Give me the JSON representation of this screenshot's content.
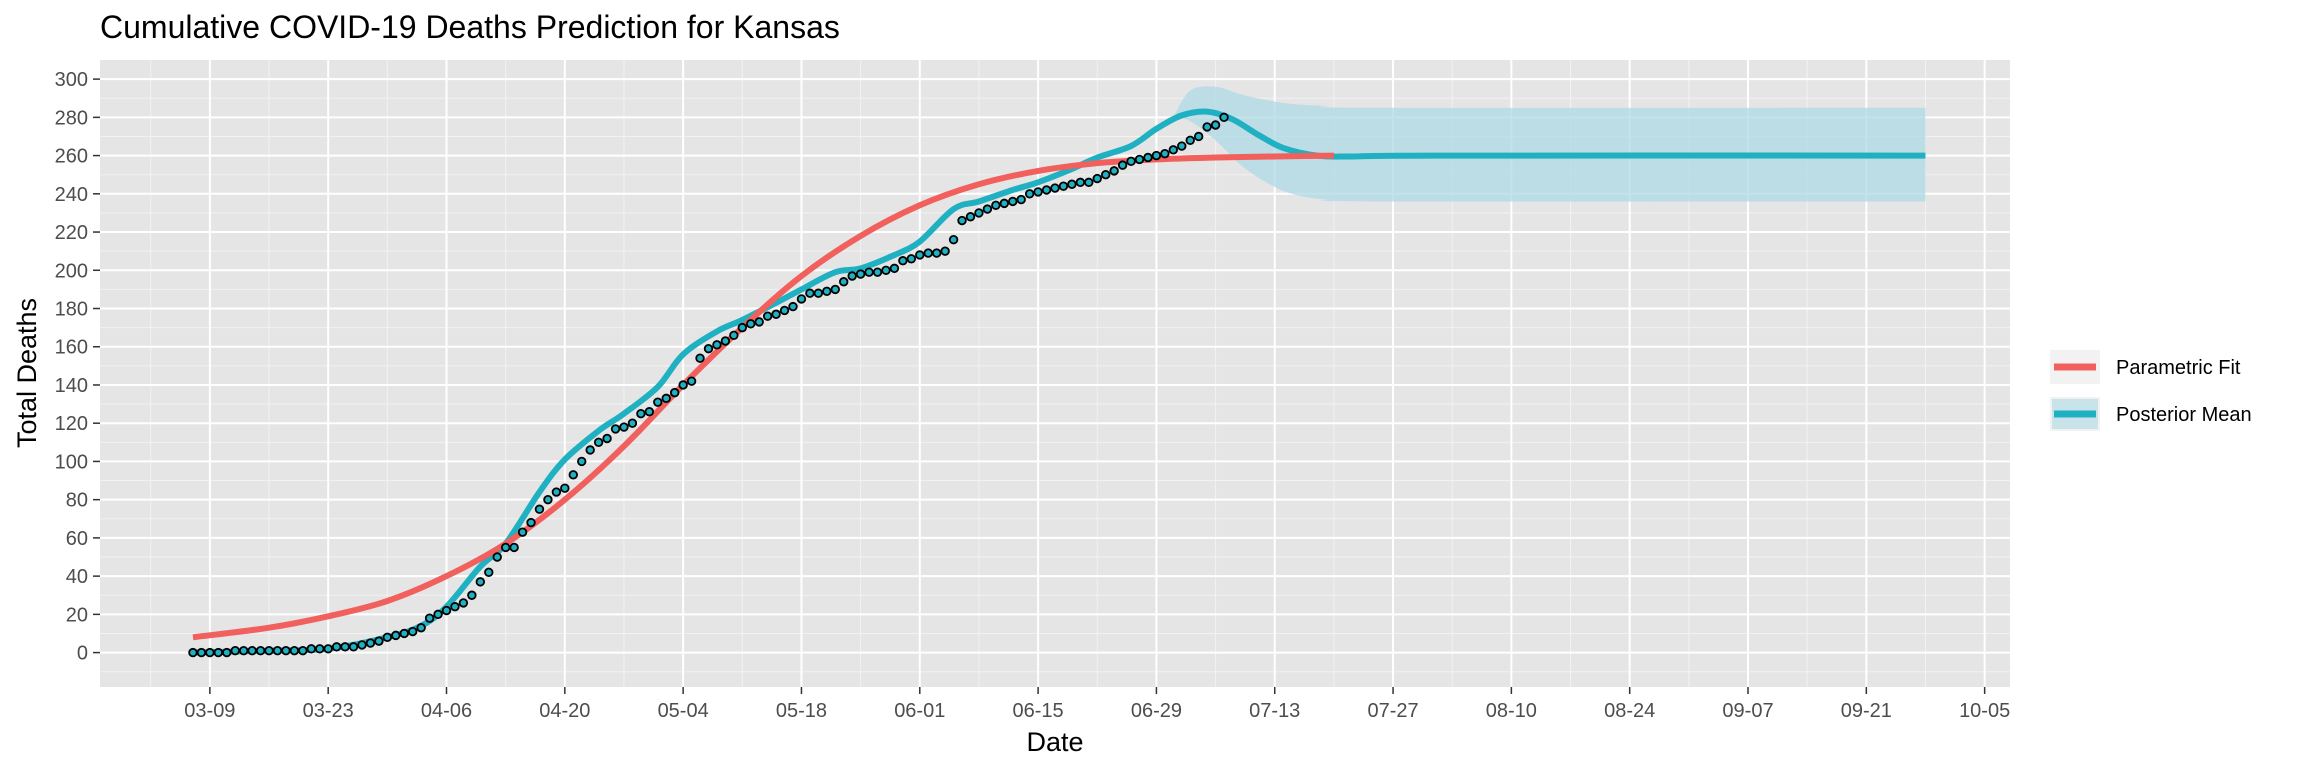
{
  "chart_data": {
    "type": "line",
    "title": "Cumulative COVID-19 Deaths Prediction for Kansas",
    "xlabel": "Date",
    "ylabel": "Total Deaths",
    "x_ticks": [
      "03-09",
      "03-23",
      "04-06",
      "04-20",
      "05-04",
      "05-18",
      "06-01",
      "06-15",
      "06-29",
      "07-13",
      "07-27",
      "08-10",
      "08-24",
      "09-07",
      "09-21",
      "10-05"
    ],
    "x_tick_dates": [
      "2020-03-09",
      "2020-03-23",
      "2020-04-06",
      "2020-04-20",
      "2020-05-04",
      "2020-05-18",
      "2020-06-01",
      "2020-06-15",
      "2020-06-29",
      "2020-07-13",
      "2020-07-27",
      "2020-08-10",
      "2020-08-24",
      "2020-09-07",
      "2020-09-21",
      "2020-10-05"
    ],
    "y_ticks": [
      0,
      20,
      40,
      60,
      80,
      100,
      120,
      140,
      160,
      180,
      200,
      220,
      240,
      260,
      280,
      300
    ],
    "xlim": [
      "2020-02-25",
      "2020-10-08"
    ],
    "ylim": [
      -18,
      310
    ],
    "grid": true,
    "legend_position": "right",
    "colors": {
      "parametric": "#F1605C",
      "posterior": "#1FB1C1",
      "band": "#ADD8E6",
      "panel": "#E5E5E5",
      "grid_major": "#FFFFFF",
      "grid_minor": "#F2F2F2"
    },
    "series": [
      {
        "name": "Parametric Fit",
        "kind": "line",
        "points": [
          [
            "2020-03-07",
            8
          ],
          [
            "2020-03-16",
            13
          ],
          [
            "2020-03-23",
            19
          ],
          [
            "2020-03-30",
            27
          ],
          [
            "2020-04-06",
            40
          ],
          [
            "2020-04-13",
            57
          ],
          [
            "2020-04-20",
            80
          ],
          [
            "2020-04-27",
            108
          ],
          [
            "2020-05-04",
            140
          ],
          [
            "2020-05-11",
            170
          ],
          [
            "2020-05-18",
            197
          ],
          [
            "2020-05-25",
            218
          ],
          [
            "2020-06-01",
            234
          ],
          [
            "2020-06-08",
            245
          ],
          [
            "2020-06-15",
            252
          ],
          [
            "2020-06-22",
            256
          ],
          [
            "2020-06-29",
            258
          ],
          [
            "2020-07-06",
            259
          ],
          [
            "2020-07-13",
            259.5
          ],
          [
            "2020-07-20",
            260
          ]
        ]
      },
      {
        "name": "Posterior Mean",
        "kind": "line",
        "points": [
          [
            "2020-03-07",
            0
          ],
          [
            "2020-03-16",
            1
          ],
          [
            "2020-03-23",
            2
          ],
          [
            "2020-03-30",
            8
          ],
          [
            "2020-04-03",
            14
          ],
          [
            "2020-04-06",
            24
          ],
          [
            "2020-04-10",
            45
          ],
          [
            "2020-04-13",
            57
          ],
          [
            "2020-04-17",
            84
          ],
          [
            "2020-04-20",
            101
          ],
          [
            "2020-04-24",
            116
          ],
          [
            "2020-04-27",
            125
          ],
          [
            "2020-05-01",
            139
          ],
          [
            "2020-05-04",
            156
          ],
          [
            "2020-05-08",
            168
          ],
          [
            "2020-05-11",
            174
          ],
          [
            "2020-05-15",
            183
          ],
          [
            "2020-05-18",
            190
          ],
          [
            "2020-05-22",
            199
          ],
          [
            "2020-05-25",
            201
          ],
          [
            "2020-05-29",
            208
          ],
          [
            "2020-06-01",
            215
          ],
          [
            "2020-06-05",
            232
          ],
          [
            "2020-06-08",
            236
          ],
          [
            "2020-06-12",
            242
          ],
          [
            "2020-06-15",
            246
          ],
          [
            "2020-06-19",
            253
          ],
          [
            "2020-06-22",
            259
          ],
          [
            "2020-06-26",
            265
          ],
          [
            "2020-06-29",
            274
          ],
          [
            "2020-07-02",
            281
          ],
          [
            "2020-07-05",
            283
          ],
          [
            "2020-07-08",
            279
          ],
          [
            "2020-07-11",
            271
          ],
          [
            "2020-07-14",
            264
          ],
          [
            "2020-07-18",
            260
          ],
          [
            "2020-07-22",
            259.5
          ],
          [
            "2020-08-01",
            260
          ],
          [
            "2020-09-28",
            260
          ]
        ]
      },
      {
        "name": "Posterior band",
        "kind": "band",
        "points": [
          [
            "2020-07-01",
            280,
            280
          ],
          [
            "2020-07-03",
            294,
            278
          ],
          [
            "2020-07-06",
            296,
            268
          ],
          [
            "2020-07-09",
            292,
            255
          ],
          [
            "2020-07-12",
            289,
            246
          ],
          [
            "2020-07-15",
            287,
            240
          ],
          [
            "2020-07-19",
            286,
            237
          ],
          [
            "2020-07-25",
            285,
            236
          ],
          [
            "2020-09-28",
            285,
            236
          ]
        ]
      },
      {
        "name": "Observed",
        "kind": "points",
        "start_date": "2020-03-07",
        "daily_values": [
          0,
          0,
          0,
          0,
          0,
          1,
          1,
          1,
          1,
          1,
          1,
          1,
          1,
          1,
          2,
          2,
          2,
          3,
          3,
          3,
          4,
          5,
          6,
          8,
          9,
          10,
          11,
          13,
          18,
          20,
          22,
          24,
          26,
          30,
          37,
          42,
          50,
          55,
          55,
          63,
          68,
          75,
          80,
          84,
          86,
          93,
          100,
          106,
          110,
          112,
          117,
          118,
          120,
          125,
          126,
          131,
          133,
          136,
          140,
          142,
          154,
          159,
          161,
          163,
          166,
          170,
          172,
          173,
          176,
          177,
          179,
          181,
          185,
          188,
          188,
          189,
          190,
          194,
          197,
          198,
          199,
          199,
          200,
          201,
          205,
          206,
          208,
          209,
          209,
          210,
          216,
          226,
          228,
          230,
          232,
          234,
          235,
          236,
          237,
          240,
          241,
          242,
          243,
          244,
          245,
          246,
          246,
          248,
          250,
          252,
          255,
          257,
          258,
          259,
          260,
          261,
          263,
          265,
          268,
          270,
          275,
          276,
          280
        ]
      }
    ]
  }
}
